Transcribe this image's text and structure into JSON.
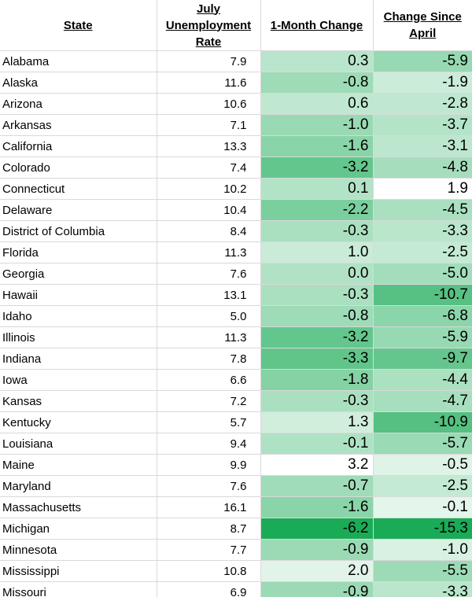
{
  "headers": {
    "state": "State",
    "rate_l1": "July",
    "rate_l2": "Unemployment",
    "rate_l3": "Rate",
    "month": "1-Month Change",
    "since_l1": "Change Since",
    "since_l2": "April"
  },
  "rows": [
    {
      "state": "Alabama",
      "rate": "7.9",
      "month": "0.3",
      "since": "-5.9"
    },
    {
      "state": "Alaska",
      "rate": "11.6",
      "month": "-0.8",
      "since": "-1.9"
    },
    {
      "state": "Arizona",
      "rate": "10.6",
      "month": "0.6",
      "since": "-2.8"
    },
    {
      "state": "Arkansas",
      "rate": "7.1",
      "month": "-1.0",
      "since": "-3.7"
    },
    {
      "state": "California",
      "rate": "13.3",
      "month": "-1.6",
      "since": "-3.1"
    },
    {
      "state": "Colorado",
      "rate": "7.4",
      "month": "-3.2",
      "since": "-4.8"
    },
    {
      "state": "Connecticut",
      "rate": "10.2",
      "month": "0.1",
      "since": "1.9"
    },
    {
      "state": "Delaware",
      "rate": "10.4",
      "month": "-2.2",
      "since": "-4.5"
    },
    {
      "state": "District of Columbia",
      "rate": "8.4",
      "month": "-0.3",
      "since": "-3.3"
    },
    {
      "state": "Florida",
      "rate": "11.3",
      "month": "1.0",
      "since": "-2.5"
    },
    {
      "state": "Georgia",
      "rate": "7.6",
      "month": "0.0",
      "since": "-5.0"
    },
    {
      "state": "Hawaii",
      "rate": "13.1",
      "month": "-0.3",
      "since": "-10.7"
    },
    {
      "state": "Idaho",
      "rate": "5.0",
      "month": "-0.8",
      "since": "-6.8"
    },
    {
      "state": "Illinois",
      "rate": "11.3",
      "month": "-3.2",
      "since": "-5.9"
    },
    {
      "state": "Indiana",
      "rate": "7.8",
      "month": "-3.3",
      "since": "-9.7"
    },
    {
      "state": "Iowa",
      "rate": "6.6",
      "month": "-1.8",
      "since": "-4.4"
    },
    {
      "state": "Kansas",
      "rate": "7.2",
      "month": "-0.3",
      "since": "-4.7"
    },
    {
      "state": "Kentucky",
      "rate": "5.7",
      "month": "1.3",
      "since": "-10.9"
    },
    {
      "state": "Louisiana",
      "rate": "9.4",
      "month": "-0.1",
      "since": "-5.7"
    },
    {
      "state": "Maine",
      "rate": "9.9",
      "month": "3.2",
      "since": "-0.5"
    },
    {
      "state": "Maryland",
      "rate": "7.6",
      "month": "-0.7",
      "since": "-2.5"
    },
    {
      "state": "Massachusetts",
      "rate": "16.1",
      "month": "-1.6",
      "since": "-0.1"
    },
    {
      "state": "Michigan",
      "rate": "8.7",
      "month": "-6.2",
      "since": "-15.3"
    },
    {
      "state": "Minnesota",
      "rate": "7.7",
      "month": "-0.9",
      "since": "-1.0"
    },
    {
      "state": "Mississippi",
      "rate": "10.8",
      "month": "2.0",
      "since": "-5.5"
    },
    {
      "state": "Missouri",
      "rate": "6.9",
      "month": "-0.9",
      "since": "-3.3"
    }
  ],
  "colors": {
    "scale_light": "#ffffff",
    "scale_dark": "#1aab56",
    "grid": "#d9d9d9"
  }
}
